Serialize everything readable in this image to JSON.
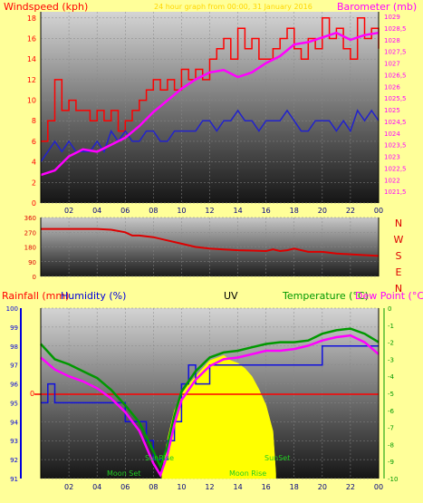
{
  "header": {
    "left_label": "Windspeed (kph)",
    "center_label": "24 hour graph from 00:00, 31 January 2016",
    "right_label": "Barometer (mb)"
  },
  "bottom_header": {
    "rainfall_label": "Rainfall (mm)",
    "humidity_label": "Humidity (%)",
    "uv_label": "UV",
    "temperature_label": "Temperature (°C)",
    "dewpoint_label": "Dew Point (°C)"
  },
  "compass": [
    "N",
    "W",
    "S",
    "E",
    "N"
  ],
  "annotations": {
    "sunrise": "SunRise",
    "sunset": "SunSet",
    "moonset": "Moon Set",
    "moonrise": "Moon Rise",
    "rain_zero": "0"
  },
  "colors": {
    "background": "#FFFF99",
    "wind": "#FF0000",
    "wind_avg": "#2222CC",
    "pressure": "#FF00FF",
    "direction": "#DD0000",
    "humidity": "#1111DD",
    "temperature": "#009900",
    "dewpoint": "#FF00FF",
    "uv": "#FFFF00",
    "rain": "#FF0000"
  },
  "chart_data": [
    {
      "type": "line",
      "xlabel": "",
      "x_ticks": [
        "02",
        "04",
        "06",
        "08",
        "10",
        "12",
        "14",
        "16",
        "18",
        "20",
        "22",
        "00"
      ],
      "y_left": {
        "label": "Windspeed (kph)",
        "lim": [
          0,
          18.6
        ],
        "ticks": [
          "0",
          "2",
          "4",
          "6",
          "8",
          "10",
          "12",
          "14",
          "16",
          "18"
        ]
      },
      "y_right": {
        "label": "Barometer (mb)",
        "lim": [
          1021,
          1029.2
        ],
        "ticks": [
          "1021,5",
          "1022",
          "1022,5",
          "1023",
          "1023,5",
          "1024",
          "1024,5",
          "1025",
          "1025,5",
          "1026",
          "1026,5",
          "1027",
          "1027,5",
          "1028",
          "1028,5",
          "1029"
        ]
      },
      "series": [
        {
          "name": "Gust",
          "axis": "left",
          "style": "step",
          "x": [
            0,
            0.5,
            1,
            1.5,
            2,
            2.5,
            3,
            3.5,
            4,
            4.5,
            5,
            5.5,
            6,
            6.5,
            7,
            7.5,
            8,
            8.5,
            9,
            9.5,
            10,
            10.5,
            11,
            11.5,
            12,
            12.5,
            13,
            13.5,
            14,
            14.5,
            15,
            15.5,
            16,
            16.5,
            17,
            17.5,
            18,
            18.5,
            19,
            19.5,
            20,
            20.5,
            21,
            21.5,
            22,
            22.5,
            23,
            23.5,
            24
          ],
          "values": [
            6,
            8,
            12,
            9,
            10,
            9,
            9,
            8,
            9,
            8,
            9,
            7,
            8,
            9,
            10,
            11,
            12,
            11,
            12,
            11,
            13,
            12,
            13,
            12,
            14,
            15,
            16,
            14,
            17,
            15,
            16,
            14,
            14,
            15,
            16,
            17,
            15,
            14,
            16,
            15,
            18,
            16,
            17,
            15,
            14,
            18,
            16,
            17,
            15
          ]
        },
        {
          "name": "Average",
          "axis": "left",
          "x": [
            0,
            0.5,
            1,
            1.5,
            2,
            2.5,
            3,
            3.5,
            4,
            4.5,
            5,
            5.5,
            6,
            6.5,
            7,
            7.5,
            8,
            8.5,
            9,
            9.5,
            10,
            10.5,
            11,
            11.5,
            12,
            12.5,
            13,
            13.5,
            14,
            14.5,
            15,
            15.5,
            16,
            16.5,
            17,
            17.5,
            18,
            18.5,
            19,
            19.5,
            20,
            20.5,
            21,
            21.5,
            22,
            22.5,
            23,
            23.5,
            24
          ],
          "values": [
            4,
            5,
            6,
            5,
            6,
            5,
            5,
            5,
            6,
            5,
            7,
            6,
            7,
            6,
            6,
            7,
            7,
            6,
            6,
            7,
            7,
            7,
            7,
            8,
            8,
            7,
            8,
            8,
            9,
            8,
            8,
            7,
            8,
            8,
            8,
            9,
            8,
            7,
            7,
            8,
            8,
            8,
            7,
            8,
            7,
            9,
            8,
            9,
            8
          ]
        },
        {
          "name": "Pressure",
          "axis": "right",
          "x": [
            0,
            1,
            2,
            3,
            4,
            5,
            6,
            7,
            8,
            9,
            10,
            11,
            12,
            13,
            14,
            15,
            16,
            17,
            18,
            19,
            20,
            21,
            22,
            23,
            24
          ],
          "values": [
            1022.2,
            1022.4,
            1023.0,
            1023.3,
            1023.2,
            1023.5,
            1023.8,
            1024.3,
            1024.9,
            1025.4,
            1025.9,
            1026.3,
            1026.6,
            1026.7,
            1026.4,
            1026.6,
            1027.0,
            1027.3,
            1027.8,
            1027.9,
            1028.1,
            1028.3,
            1028.0,
            1028.2,
            1028.3
          ]
        }
      ]
    },
    {
      "type": "line",
      "x_ticks": [
        "02",
        "04",
        "06",
        "08",
        "10",
        "12",
        "14",
        "16",
        "18",
        "20",
        "22",
        "00"
      ],
      "y_left": {
        "lim": [
          0,
          360
        ],
        "ticks": [
          "0",
          "90",
          "180",
          "270",
          "360"
        ]
      },
      "series": [
        {
          "name": "Direction",
          "x": [
            0,
            1,
            2,
            3,
            4,
            5,
            6,
            6.5,
            7,
            8,
            9,
            10,
            11,
            12,
            13,
            14,
            15,
            16,
            16.5,
            17,
            17.5,
            18,
            19,
            20,
            21,
            22,
            23,
            24
          ],
          "values": [
            290,
            290,
            290,
            290,
            290,
            285,
            270,
            250,
            250,
            240,
            220,
            200,
            180,
            170,
            165,
            160,
            158,
            155,
            165,
            155,
            160,
            170,
            150,
            150,
            140,
            135,
            130,
            125
          ]
        }
      ]
    },
    {
      "type": "line",
      "x_ticks": [
        "02",
        "04",
        "06",
        "08",
        "10",
        "12",
        "14",
        "16",
        "18",
        "20",
        "22",
        "00"
      ],
      "y_left": {
        "label": "Humidity (%)",
        "lim": [
          91,
          100
        ],
        "ticks": [
          "91",
          "92",
          "93",
          "94",
          "95",
          "96",
          "97",
          "98",
          "99",
          "100"
        ]
      },
      "y_right": {
        "label": "Temperature (°C)",
        "lim": [
          -10,
          0
        ],
        "ticks": [
          "-10",
          "-9",
          "-8",
          "-7",
          "-6",
          "-5",
          "-4",
          "-3",
          "-2",
          "-1",
          "0"
        ]
      },
      "series": [
        {
          "name": "Humidity",
          "axis": "left",
          "style": "step",
          "x": [
            0,
            0.5,
            1,
            1.5,
            2,
            3,
            4,
            5,
            6,
            7,
            7.5,
            8,
            8.3,
            8.6,
            9,
            9.5,
            10,
            10.5,
            11,
            12,
            13,
            14,
            15,
            16,
            17,
            18,
            19,
            20,
            21,
            22,
            23,
            24
          ],
          "values": [
            95,
            96,
            95,
            95,
            95,
            95,
            95,
            95,
            94,
            94,
            93,
            92,
            92,
            92,
            93,
            94,
            96,
            97,
            96,
            97,
            97,
            97,
            97,
            97,
            97,
            97,
            97,
            98,
            98,
            98,
            98,
            98
          ]
        },
        {
          "name": "Temperature",
          "axis": "right",
          "x": [
            0,
            1,
            2,
            3,
            4,
            5,
            6,
            7,
            8,
            8.5,
            9,
            9.5,
            10,
            11,
            12,
            13,
            14,
            15,
            16,
            17,
            18,
            19,
            20,
            21,
            22,
            23,
            24
          ],
          "values": [
            -2.1,
            -3,
            -3.3,
            -3.7,
            -4.1,
            -4.8,
            -5.7,
            -6.7,
            -8.4,
            -9.3,
            -8.1,
            -6.3,
            -4.9,
            -3.7,
            -2.9,
            -2.6,
            -2.5,
            -2.3,
            -2.1,
            -2.0,
            -2.0,
            -1.9,
            -1.5,
            -1.3,
            -1.2,
            -1.5,
            -2.0
          ]
        },
        {
          "name": "Dew Point",
          "axis": "right",
          "x": [
            0,
            1,
            2,
            3,
            4,
            5,
            6,
            7,
            8,
            8.5,
            9,
            9.5,
            10,
            11,
            12,
            13,
            14,
            15,
            16,
            17,
            18,
            19,
            20,
            21,
            22,
            23,
            24
          ],
          "values": [
            -2.9,
            -3.6,
            -4.0,
            -4.3,
            -4.7,
            -5.3,
            -6.1,
            -7.2,
            -9.1,
            -9.8,
            -8.6,
            -6.8,
            -5.4,
            -4.2,
            -3.4,
            -3.0,
            -2.9,
            -2.7,
            -2.5,
            -2.5,
            -2.4,
            -2.2,
            -1.9,
            -1.7,
            -1.6,
            -2.0,
            -2.7
          ]
        },
        {
          "name": "UV",
          "axis": "uv",
          "style": "area",
          "x": [
            8.6,
            9,
            9.5,
            10,
            10.5,
            11,
            11.5,
            12,
            12.5,
            13,
            13.5,
            14,
            14.5,
            15,
            15.5,
            16,
            16.5,
            16.7
          ],
          "values": [
            0.2,
            1.5,
            2.6,
            3.2,
            3.6,
            3.9,
            4.2,
            4.5,
            4.6,
            4.7,
            4.5,
            4.4,
            4.2,
            3.9,
            3.4,
            2.8,
            1.8,
            0.2
          ]
        },
        {
          "name": "Rain",
          "axis": "rain",
          "x": [
            0,
            24
          ],
          "values": [
            0,
            0
          ]
        }
      ]
    }
  ]
}
